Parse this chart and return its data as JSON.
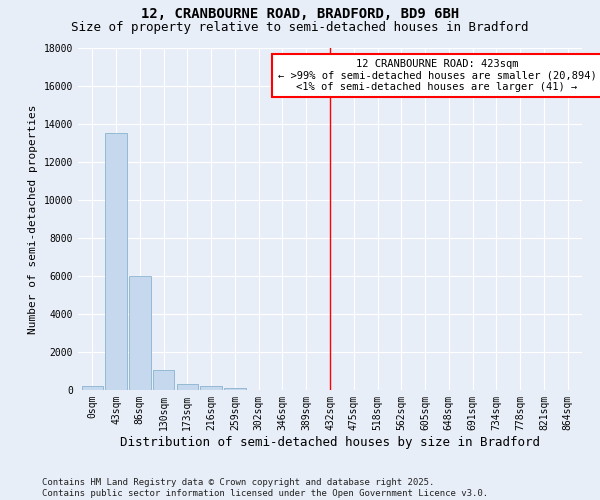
{
  "title1": "12, CRANBOURNE ROAD, BRADFORD, BD9 6BH",
  "title2": "Size of property relative to semi-detached houses in Bradford",
  "xlabel": "Distribution of semi-detached houses by size in Bradford",
  "ylabel": "Number of semi-detached properties",
  "bar_labels": [
    "0sqm",
    "43sqm",
    "86sqm",
    "130sqm",
    "173sqm",
    "216sqm",
    "259sqm",
    "302sqm",
    "346sqm",
    "389sqm",
    "432sqm",
    "475sqm",
    "518sqm",
    "562sqm",
    "605sqm",
    "648sqm",
    "691sqm",
    "734sqm",
    "778sqm",
    "821sqm",
    "864sqm"
  ],
  "bar_values": [
    200,
    13500,
    6000,
    1050,
    300,
    200,
    100,
    0,
    0,
    0,
    0,
    0,
    0,
    0,
    0,
    0,
    0,
    0,
    0,
    0,
    0
  ],
  "bar_color": "#c5d8ed",
  "bar_edge_color": "#7aaac8",
  "vline_x_index": 10,
  "vline_color": "red",
  "annotation_title": "12 CRANBOURNE ROAD: 423sqm",
  "annotation_line1": "← >99% of semi-detached houses are smaller (20,894)",
  "annotation_line2": "<1% of semi-detached houses are larger (41) →",
  "box_facecolor": "white",
  "box_edgecolor": "red",
  "ylim": [
    0,
    18000
  ],
  "yticks": [
    0,
    2000,
    4000,
    6000,
    8000,
    10000,
    12000,
    14000,
    16000,
    18000
  ],
  "footnote1": "Contains HM Land Registry data © Crown copyright and database right 2025.",
  "footnote2": "Contains public sector information licensed under the Open Government Licence v3.0.",
  "bg_color": "#e8eef8",
  "grid_color": "#ffffff",
  "title_fontsize": 10,
  "subtitle_fontsize": 9,
  "tick_fontsize": 7,
  "ylabel_fontsize": 8,
  "xlabel_fontsize": 9,
  "annot_fontsize": 7.5,
  "footnote_fontsize": 6.5
}
